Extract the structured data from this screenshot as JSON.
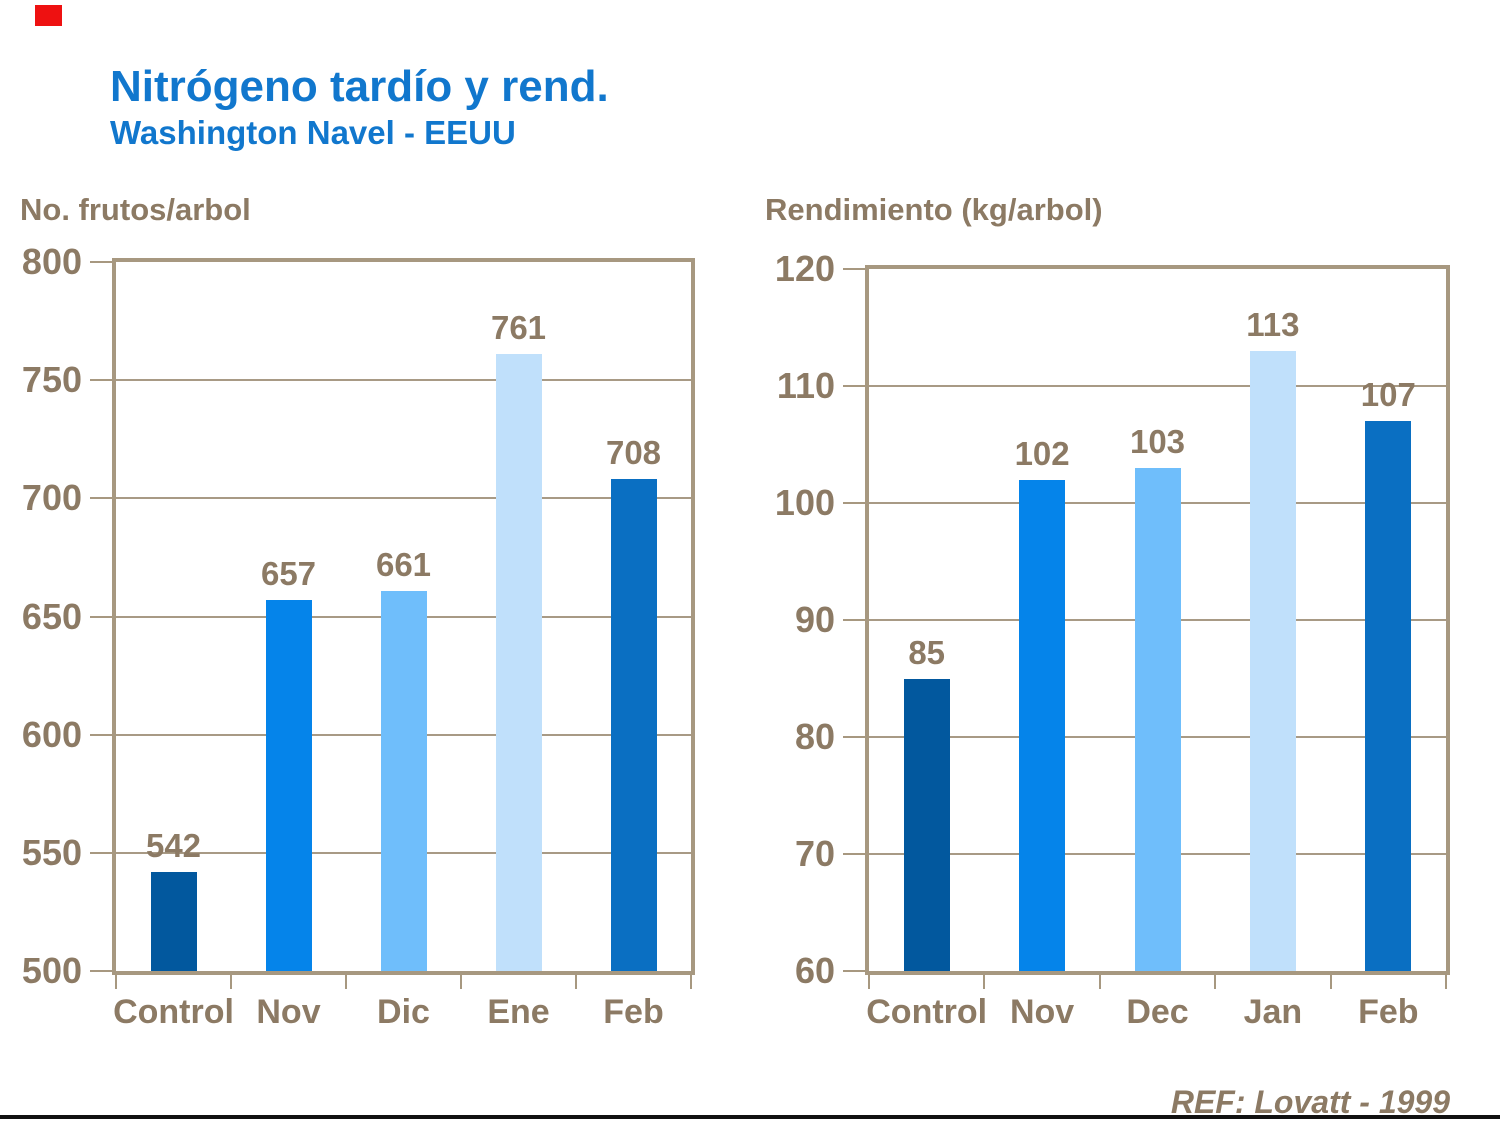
{
  "slide": {
    "title": "Nitrógeno tardío y rend.",
    "subtitle": "Washington Navel - EEUU",
    "reference": "REF: Lovatt - 1999",
    "accent_square_color": "#ee1111"
  },
  "colors": {
    "title_blue": "#1177cd",
    "text_brown": "#8c7a64",
    "plot_border_tan": "#a79880",
    "gridline_tan": "#a89a85",
    "bottom_rule": "#111111",
    "bar_palette": [
      "#02589e",
      "#0584ea",
      "#6fbefb",
      "#c0e0fb",
      "#0a6fc2"
    ]
  },
  "chart_data": [
    {
      "type": "bar",
      "title": "No. frutos/arbol",
      "categories": [
        "Control",
        "Nov",
        "Dic",
        "Ene",
        "Feb"
      ],
      "values": [
        542,
        657,
        661,
        761,
        708
      ],
      "ylim": [
        500,
        800
      ],
      "yticks": [
        500,
        550,
        600,
        650,
        700,
        750,
        800
      ],
      "grid": true,
      "legend_position": "none",
      "value_labels": [
        "542",
        "657",
        "661",
        "761",
        "708"
      ]
    },
    {
      "type": "bar",
      "title": "Rendimiento (kg/arbol)",
      "categories": [
        "Control",
        "Nov",
        "Dec",
        "Jan",
        "Feb"
      ],
      "values": [
        85,
        102,
        103,
        113,
        107
      ],
      "ylim": [
        60,
        120
      ],
      "yticks": [
        60,
        70,
        80,
        90,
        100,
        110,
        120
      ],
      "grid": true,
      "legend_position": "none",
      "value_labels": [
        "85",
        "102",
        "103",
        "113",
        "107"
      ]
    }
  ]
}
